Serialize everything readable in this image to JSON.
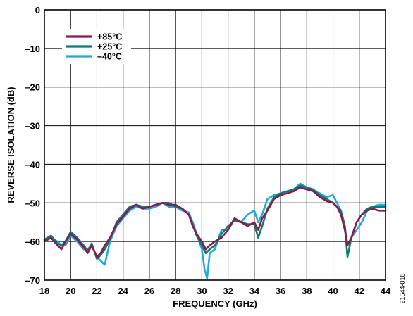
{
  "figure_id": "21544-018",
  "chart_data": {
    "type": "line",
    "xlabel": "FREQUENCY (GHz)",
    "ylabel": "REVERSE ISOLATION (dB)",
    "xlim": [
      18,
      44
    ],
    "ylim": [
      -70,
      0
    ],
    "xticks": [
      18,
      20,
      22,
      24,
      26,
      28,
      30,
      32,
      34,
      36,
      38,
      40,
      42,
      44
    ],
    "yticks": [
      0,
      -10,
      -20,
      -30,
      -40,
      -50,
      -60,
      -70
    ],
    "xtick_labels": [
      "18",
      "20",
      "22",
      "24",
      "26",
      "28",
      "30",
      "32",
      "34",
      "36",
      "38",
      "40",
      "42",
      "44"
    ],
    "ytick_labels": [
      "0",
      "–10",
      "–20",
      "–30",
      "–40",
      "–50",
      "–60",
      "–70"
    ],
    "grid": true,
    "legend_position": "top-left",
    "series": [
      {
        "name": "+85°C",
        "color": "#8b1a4a",
        "x": [
          18,
          18.5,
          19,
          19.3,
          19.6,
          20,
          20.5,
          21,
          21.3,
          21.6,
          22,
          22.3,
          22.6,
          23,
          23.5,
          24,
          24.5,
          25,
          25.5,
          26,
          26.5,
          27,
          27.5,
          28,
          28.5,
          29,
          29.3,
          29.6,
          30,
          30.3,
          30.6,
          31,
          31.5,
          32,
          32.5,
          33,
          33.5,
          34,
          34.3,
          34.6,
          35,
          35.5,
          36,
          36.5,
          37,
          37.5,
          38,
          38.5,
          39,
          39.5,
          40,
          40.3,
          40.6,
          40.9,
          41.1,
          41.4,
          41.8,
          42.2,
          42.6,
          43,
          43.5,
          44
        ],
        "values": [
          -60,
          -59,
          -61,
          -62,
          -60,
          -58,
          -59.5,
          -61.5,
          -63,
          -61,
          -64,
          -63,
          -61,
          -59,
          -55.5,
          -53.5,
          -51.5,
          -50.5,
          -51.5,
          -51,
          -50.5,
          -50,
          -50.5,
          -50.5,
          -51.5,
          -53,
          -56,
          -58,
          -60,
          -62,
          -61,
          -60,
          -59,
          -57,
          -54,
          -55,
          -56,
          -55,
          -57,
          -54,
          -52,
          -49,
          -48,
          -47.5,
          -47,
          -46,
          -46.5,
          -47,
          -48.5,
          -49.5,
          -50,
          -51,
          -53,
          -57,
          -61,
          -59,
          -55,
          -53,
          -52,
          -51.5,
          -52,
          -52
        ]
      },
      {
        "name": "+25°C",
        "color": "#0f7b70",
        "x": [
          18,
          18.5,
          19,
          19.3,
          19.6,
          20,
          20.5,
          21,
          21.3,
          21.6,
          22,
          22.3,
          22.6,
          23,
          23.5,
          24,
          24.5,
          25,
          25.5,
          26,
          26.5,
          27,
          27.5,
          28,
          28.5,
          29,
          29.3,
          29.6,
          30,
          30.3,
          30.6,
          31,
          31.5,
          32,
          32.5,
          33,
          33.5,
          34,
          34.3,
          34.6,
          35,
          35.5,
          36,
          36.5,
          37,
          37.5,
          38,
          38.5,
          39,
          39.5,
          40,
          40.3,
          40.6,
          40.9,
          41.1,
          41.4,
          41.8,
          42.2,
          42.6,
          43,
          43.5,
          44
        ],
        "values": [
          -59.5,
          -58.5,
          -60.5,
          -61,
          -60,
          -57.5,
          -59,
          -61,
          -62.5,
          -60.5,
          -64.5,
          -63.5,
          -62,
          -59.5,
          -55,
          -53,
          -51,
          -50.5,
          -51,
          -51,
          -50.5,
          -50,
          -50,
          -51,
          -51.5,
          -53,
          -55.5,
          -58.5,
          -61,
          -63,
          -62,
          -61,
          -58,
          -56,
          -54.5,
          -55,
          -55.5,
          -55.5,
          -59,
          -56,
          -51.5,
          -48.5,
          -47.5,
          -47,
          -46.5,
          -45.5,
          -46,
          -46.5,
          -48,
          -49,
          -50,
          -51,
          -52,
          -56,
          -64,
          -59,
          -55,
          -53,
          -51.5,
          -51,
          -51,
          -51
        ]
      },
      {
        "name": "–40°C",
        "color": "#22a9dc",
        "x": [
          18,
          18.5,
          19,
          19.3,
          19.6,
          20,
          20.5,
          21,
          21.3,
          21.6,
          22,
          22.3,
          22.6,
          23,
          23.5,
          24,
          24.5,
          25,
          25.5,
          26,
          26.5,
          27,
          27.5,
          28,
          28.5,
          29,
          29.3,
          29.6,
          30,
          30.2,
          30.4,
          30.6,
          31,
          31.5,
          32,
          32.5,
          33,
          33.5,
          34,
          34.3,
          34.6,
          35,
          35.5,
          36,
          36.5,
          37,
          37.5,
          38,
          38.5,
          39,
          39.5,
          40,
          40.3,
          40.6,
          40.9,
          41.1,
          41.4,
          41.8,
          42.2,
          42.6,
          43,
          43.5,
          44
        ],
        "values": [
          -60,
          -59,
          -60,
          -61,
          -61,
          -58.5,
          -60,
          -62,
          -62,
          -61,
          -64,
          -65,
          -66,
          -60,
          -56,
          -54,
          -52,
          -51,
          -51.5,
          -51.5,
          -51,
          -50,
          -51,
          -51,
          -52,
          -52.5,
          -55,
          -58,
          -62,
          -67,
          -69.5,
          -63,
          -62,
          -57,
          -57,
          -54,
          -55,
          -53,
          -52,
          -55,
          -53,
          -49,
          -48,
          -47.5,
          -47,
          -46.5,
          -45,
          -46,
          -47,
          -47.5,
          -48.5,
          -48,
          -50,
          -52,
          -56,
          -61,
          -59,
          -57,
          -55,
          -52,
          -51,
          -50.5,
          -50.5
        ]
      }
    ]
  }
}
